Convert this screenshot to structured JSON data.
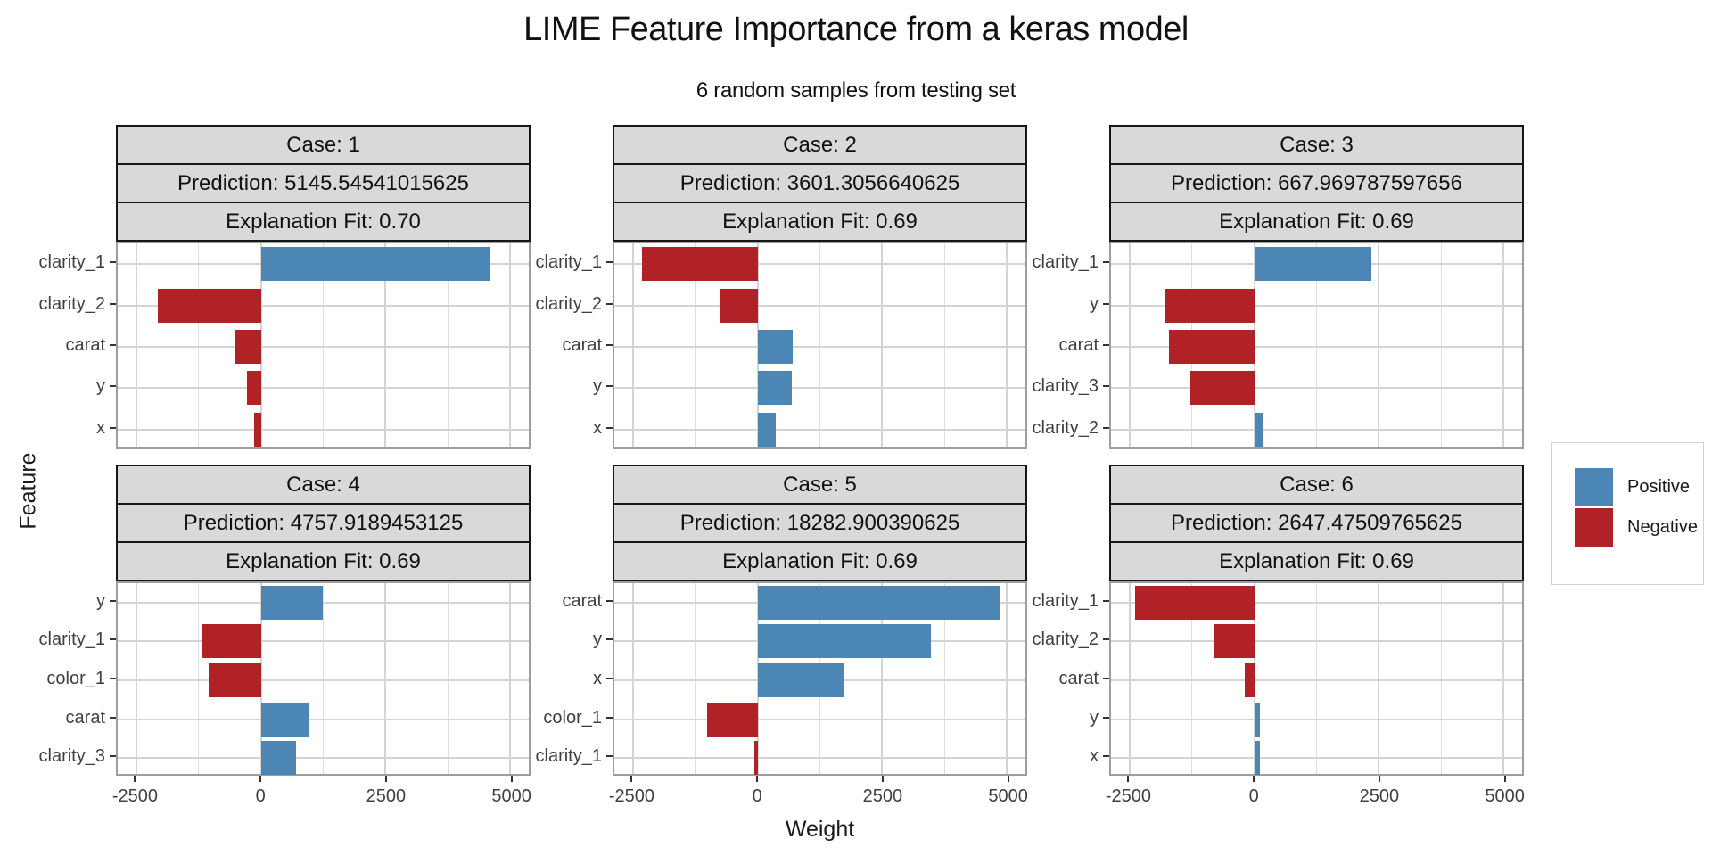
{
  "title": "LIME Feature Importance from a keras model",
  "subtitle": "6 random samples from testing set",
  "axes": {
    "x_label": "Weight",
    "y_label": "Feature",
    "x_ticks": [
      -2500,
      0,
      2500,
      5000
    ],
    "x_tick_labels": [
      "-2500",
      "0",
      "2500",
      "5000"
    ],
    "x_minor_ticks": [
      -1250,
      1250,
      3750
    ],
    "x_range": [
      -2880,
      5380
    ]
  },
  "colors": {
    "positive": "#4C86B5",
    "negative": "#B02226",
    "strip_background": "#D9D9D9",
    "gridline": "#D4D4D4",
    "panel_border": "#9E9E9E"
  },
  "legend": {
    "items": [
      {
        "label": "Positive",
        "color": "#4C86B5"
      },
      {
        "label": "Negative",
        "color": "#B02226"
      }
    ]
  },
  "chart_data": {
    "type": "bar",
    "orientation": "horizontal",
    "title": "LIME Feature Importance from a keras model",
    "subtitle": "6 random samples from testing set",
    "xlabel": "Weight",
    "ylabel": "Feature",
    "xlim": [
      -2880,
      5380
    ],
    "grid": true,
    "legend_position": "right",
    "facets": [
      {
        "case_label": "Case: 1",
        "prediction_label": "Prediction: 5145.54541015625",
        "fit_label": "Explanation Fit: 0.70",
        "features": [
          "clarity_1",
          "clarity_2",
          "carat",
          "y",
          "x"
        ],
        "weights": [
          4600,
          -2070,
          -530,
          -280,
          -140
        ]
      },
      {
        "case_label": "Case: 2",
        "prediction_label": "Prediction: 3601.3056640625",
        "fit_label": "Explanation Fit: 0.69",
        "features": [
          "clarity_1",
          "clarity_2",
          "carat",
          "y",
          "x"
        ],
        "weights": [
          -2320,
          -770,
          710,
          680,
          360
        ]
      },
      {
        "case_label": "Case: 3",
        "prediction_label": "Prediction: 667.969787597656",
        "fit_label": "Explanation Fit: 0.69",
        "features": [
          "clarity_1",
          "y",
          "carat",
          "clarity_3",
          "clarity_2"
        ],
        "weights": [
          2350,
          -1800,
          -1720,
          -1290,
          170
        ]
      },
      {
        "case_label": "Case: 4",
        "prediction_label": "Prediction: 4757.9189453125",
        "fit_label": "Explanation Fit: 0.69",
        "features": [
          "y",
          "clarity_1",
          "color_1",
          "carat",
          "clarity_3"
        ],
        "weights": [
          1250,
          -1170,
          -1050,
          960,
          700
        ]
      },
      {
        "case_label": "Case: 5",
        "prediction_label": "Prediction: 18282.900390625",
        "fit_label": "Explanation Fit: 0.69",
        "features": [
          "carat",
          "y",
          "x",
          "color_1",
          "clarity_1"
        ],
        "weights": [
          4860,
          3480,
          1750,
          -1010,
          -60
        ]
      },
      {
        "case_label": "Case: 6",
        "prediction_label": "Prediction: 2647.47509765625",
        "fit_label": "Explanation Fit: 0.69",
        "features": [
          "clarity_1",
          "clarity_2",
          "carat",
          "y",
          "x"
        ],
        "weights": [
          -2400,
          -800,
          -195,
          120,
          120
        ]
      }
    ]
  }
}
